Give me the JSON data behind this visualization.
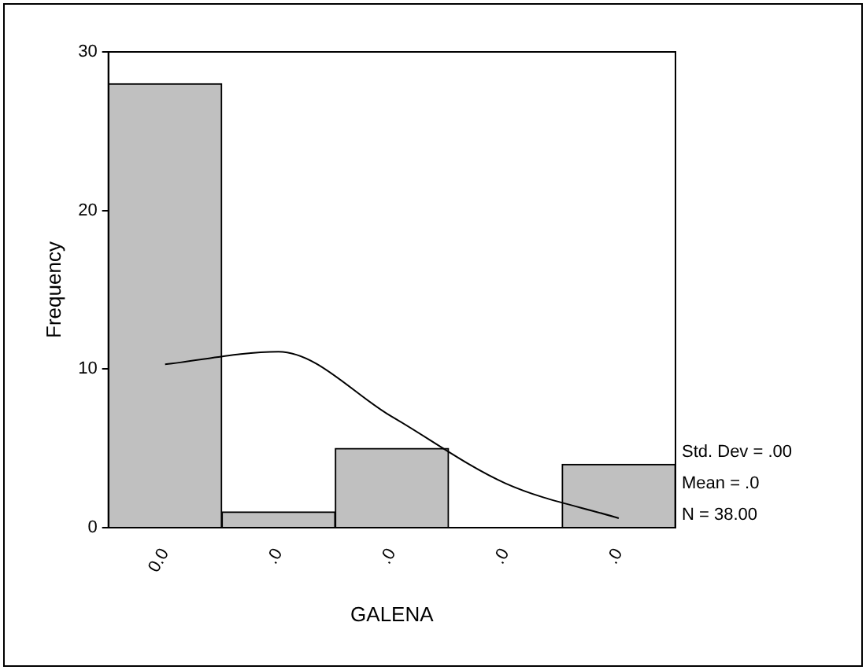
{
  "chart_data": {
    "type": "bar",
    "xlabel": "GALENA",
    "ylabel": "Frequency",
    "categories": [
      "0.0",
      ".0",
      ".0",
      ".0",
      ".0"
    ],
    "series": [
      {
        "color": "#c0c0c0",
        "values": [
          28,
          1,
          5,
          0,
          4
        ]
      },
      {
        "type": "line",
        "color": "#000000",
        "values": [
          10.3,
          11.1,
          7.0,
          2.8,
          0.6
        ]
      }
    ],
    "ylim": [
      0,
      30
    ],
    "yticks": [
      0,
      10,
      20,
      30
    ],
    "grid": false,
    "legend": false,
    "marker": "none",
    "annotations": [
      "Std. Dev = .00",
      "Mean = .0",
      "N = 38.00"
    ]
  }
}
